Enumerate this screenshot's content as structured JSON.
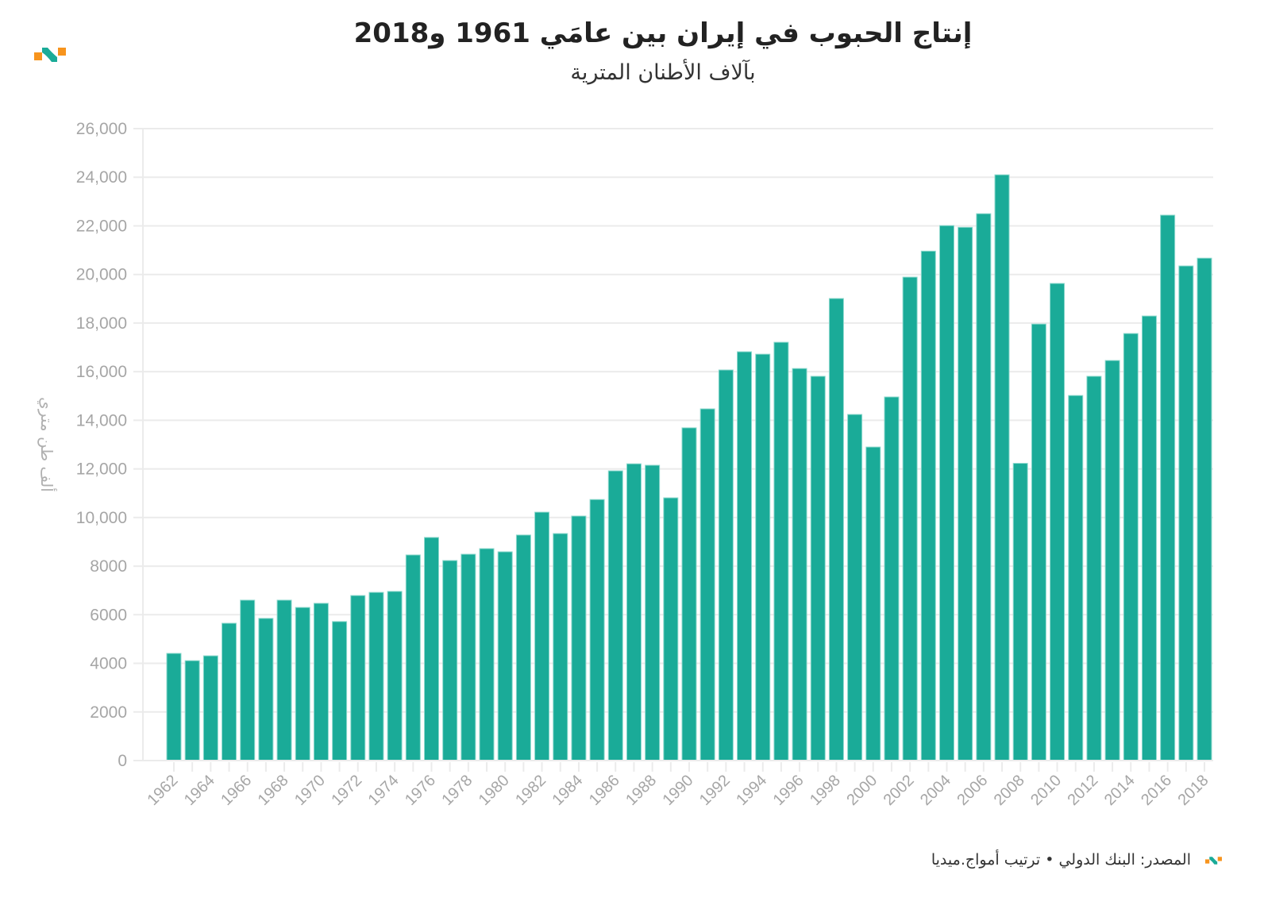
{
  "header": {
    "title": "إنتاج الحبوب في إيران بين عامَي 1961 و2018",
    "subtitle": "بآلاف الأطنان المترية",
    "logo_icon": "amwaj-media-logo"
  },
  "footer": {
    "source": "المصدر: البنك الدولي • ترتيب أمواج.ميديا",
    "logo_icon": "amwaj-media-logo"
  },
  "colors": {
    "bar": "#1aab98",
    "bar_outline": "#8fd9ce",
    "grid": "#ebebeb",
    "tick_text": "#a6a6a6",
    "logo_orange": "#f7941d",
    "logo_teal": "#1aab98"
  },
  "chart_data": {
    "type": "bar",
    "title": "إنتاج الحبوب في إيران بين عامَي 1961 و2018",
    "subtitle": "بآلاف الأطنان المترية",
    "xlabel": "",
    "ylabel": "ألف طن متري",
    "ylim": [
      0,
      26000
    ],
    "yticks": [
      0,
      2000,
      4000,
      6000,
      8000,
      10000,
      12000,
      14000,
      16000,
      18000,
      20000,
      22000,
      24000,
      26000
    ],
    "ytick_labels": [
      "0",
      "2000",
      "4000",
      "6000",
      "8000",
      "10,000",
      "12,000",
      "14,000",
      "16,000",
      "18,000",
      "20,000",
      "22,000",
      "24,000",
      "26,000"
    ],
    "grid": true,
    "legend": "none",
    "categories": [
      "1962",
      "1963",
      "1964",
      "1965",
      "1966",
      "1967",
      "1968",
      "1969",
      "1970",
      "1971",
      "1972",
      "1973",
      "1974",
      "1975",
      "1976",
      "1977",
      "1978",
      "1979",
      "1980",
      "1981",
      "1982",
      "1983",
      "1984",
      "1985",
      "1986",
      "1987",
      "1988",
      "1989",
      "1990",
      "1991",
      "1992",
      "1993",
      "1994",
      "1995",
      "1996",
      "1997",
      "1998",
      "1999",
      "2000",
      "2001",
      "2002",
      "2003",
      "2004",
      "2005",
      "2006",
      "2007",
      "2008",
      "2009",
      "2010",
      "2011",
      "2012",
      "2013",
      "2014",
      "2015",
      "2016",
      "2017",
      "2018"
    ],
    "xtick_labels": [
      "1962",
      "1964",
      "1966",
      "1968",
      "1970",
      "1972",
      "1974",
      "1976",
      "1978",
      "1980",
      "1982",
      "1984",
      "1986",
      "1988",
      "1990",
      "1992",
      "1994",
      "1996",
      "1998",
      "2000",
      "2002",
      "2004",
      "2006",
      "2008",
      "2010",
      "2012",
      "2014",
      "2016",
      "2018"
    ],
    "values": [
      4410,
      4110,
      4310,
      5650,
      6600,
      5850,
      6600,
      6300,
      6470,
      5720,
      6790,
      6920,
      6960,
      8460,
      9180,
      8230,
      8490,
      8720,
      8590,
      9280,
      10220,
      9340,
      10060,
      10740,
      11920,
      12210,
      12150,
      10810,
      13690,
      14470,
      16070,
      16820,
      16720,
      17210,
      16130,
      15810,
      19010,
      14240,
      12900,
      14960,
      19890,
      20960,
      22010,
      21940,
      22500,
      24100,
      12230,
      17960,
      19630,
      15020,
      15810,
      16460,
      17570,
      18290,
      22440,
      20350,
      20670
    ]
  }
}
